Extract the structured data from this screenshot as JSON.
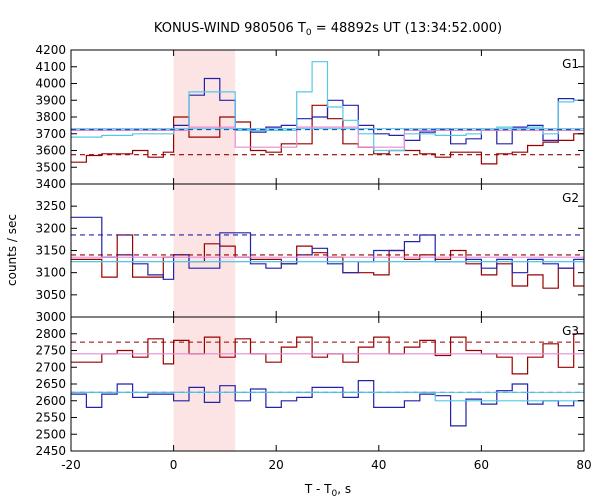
{
  "chart_data": {
    "type": "line",
    "title": "KONUS-WIND 980506 T",
    "title_sub": "0",
    "title_suffix": " = 48892s UT (13:34:52.000)",
    "xlabel_main": "T - T",
    "xlabel_sub": "0",
    "xlabel_suffix": ", s",
    "ylabel": "counts / sec",
    "xlim": [
      -20,
      80
    ],
    "xticks": [
      -20,
      0,
      20,
      40,
      60,
      80
    ],
    "highlight_interval": [
      0,
      12
    ],
    "colors": {
      "dark_red": "#990000",
      "blue": "#2222aa",
      "light_blue": "#55c8e6",
      "pink": "#e68ad0",
      "highlight": "#fde4e4"
    },
    "panels": [
      {
        "label": "G1",
        "ylim": [
          3400,
          4200
        ],
        "yticks": [
          3400,
          3500,
          3600,
          3700,
          3800,
          3900,
          4000,
          4100,
          4200
        ],
        "bins": [
          -20,
          -17,
          -14,
          -11,
          -8,
          -5,
          -2,
          0,
          3,
          6,
          9,
          12,
          15,
          18,
          21,
          24,
          27,
          30,
          33,
          36,
          39,
          42,
          45,
          48,
          51,
          54,
          57,
          60,
          63,
          66,
          69,
          72,
          75,
          78,
          80
        ],
        "series": [
          {
            "color": "dark_red",
            "style": "step",
            "values": [
              3530,
              3570,
              3580,
              3580,
              3600,
              3560,
              3590,
              3800,
              3680,
              3680,
              3800,
              3770,
              3600,
              3590,
              3640,
              3640,
              3870,
              3790,
              3640,
              3620,
              3580,
              3600,
              3600,
              3580,
              3560,
              3590,
              3590,
              3520,
              3580,
              3590,
              3630,
              3650,
              3660,
              3700
            ]
          },
          {
            "color": "blue",
            "style": "step",
            "values": [
              3720,
              3720,
              3720,
              3720,
              3720,
              3720,
              3720,
              3750,
              3930,
              4030,
              3900,
              3730,
              3710,
              3740,
              3750,
              3790,
              3800,
              3900,
              3870,
              3750,
              3700,
              3690,
              3660,
              3710,
              3730,
              3640,
              3670,
              3720,
              3640,
              3740,
              3750,
              3660,
              3910,
              3900
            ]
          },
          {
            "color": "light_blue",
            "style": "step",
            "values": [
              3680,
              3680,
              3690,
              3690,
              3700,
              3700,
              3700,
              3720,
              3950,
              3950,
              3950,
              3720,
              3720,
              3720,
              3720,
              3950,
              4130,
              3860,
              3780,
              3700,
              3600,
              3600,
              3700,
              3700,
              3690,
              3690,
              3700,
              3720,
              3740,
              3730,
              3740,
              3700,
              3890,
              3900
            ]
          },
          {
            "color": "pink",
            "style": "step",
            "values": [
              3720,
              3720,
              3720,
              3720,
              3720,
              3720,
              3720,
              3720,
              3740,
              3740,
              3740,
              3620,
              3620,
              3620,
              3620,
              3740,
              3740,
              3740,
              3740,
              3620,
              3620,
              3620,
              3720,
              3720,
              3720,
              3720,
              3720,
              3720,
              3720,
              3720,
              3720,
              3720,
              3720,
              3720
            ]
          },
          {
            "color": "dark_red",
            "style": "dashed",
            "y": 3575
          },
          {
            "color": "blue",
            "style": "dashed",
            "y": 3725
          },
          {
            "color": "light_blue",
            "style": "solid",
            "y": 3730
          }
        ]
      },
      {
        "label": "G2",
        "ylim": [
          3000,
          3300
        ],
        "yticks": [
          3000,
          3050,
          3100,
          3150,
          3200,
          3250
        ],
        "bins": [
          -20,
          -17,
          -14,
          -11,
          -8,
          -5,
          -2,
          0,
          3,
          6,
          9,
          12,
          15,
          18,
          21,
          24,
          27,
          30,
          33,
          36,
          39,
          42,
          45,
          48,
          51,
          54,
          57,
          60,
          63,
          66,
          69,
          72,
          75,
          78,
          80
        ],
        "series": [
          {
            "color": "dark_red",
            "style": "step",
            "values": [
              3130,
              3130,
              3090,
              3185,
              3090,
              3090,
              3135,
              3140,
              3125,
              3165,
              3160,
              3135,
              3130,
              3130,
              3120,
              3160,
              3145,
              3135,
              3100,
              3100,
              3095,
              3150,
              3130,
              3140,
              3130,
              3150,
              3120,
              3095,
              3120,
              3070,
              3095,
              3065,
              3110,
              3070
            ]
          },
          {
            "color": "blue",
            "style": "step",
            "values": [
              3225,
              3225,
              3135,
              3140,
              3120,
              3095,
              3085,
              3140,
              3110,
              3110,
              3190,
              3190,
              3120,
              3110,
              3120,
              3140,
              3155,
              3120,
              3100,
              3125,
              3150,
              3150,
              3170,
              3185,
              3125,
              3125,
              3130,
              3110,
              3130,
              3100,
              3130,
              3120,
              3110,
              3130
            ]
          },
          {
            "color": "light_blue",
            "style": "step",
            "values": [
              3125,
              3125,
              3125,
              3125,
              3125,
              3125,
              3125,
              3125,
              3125,
              3125,
              3125,
              3125,
              3125,
              3125,
              3125,
              3125,
              3125,
              3125,
              3125,
              3125,
              3125,
              3125,
              3125,
              3125,
              3125,
              3125,
              3125,
              3125,
              3125,
              3125,
              3125,
              3125,
              3125,
              3125
            ]
          },
          {
            "color": "blue",
            "style": "dashed",
            "y": 3185
          },
          {
            "color": "dark_red",
            "style": "dashed",
            "y": 3140
          },
          {
            "color": "light_blue",
            "style": "solid",
            "y": 3125
          },
          {
            "color": "pink",
            "style": "solid",
            "y": 3135
          }
        ]
      },
      {
        "label": "G3",
        "ylim": [
          2450,
          2850
        ],
        "yticks": [
          2450,
          2500,
          2550,
          2600,
          2650,
          2700,
          2750,
          2800
        ],
        "bins": [
          -20,
          -17,
          -14,
          -11,
          -8,
          -5,
          -2,
          0,
          3,
          6,
          9,
          12,
          15,
          18,
          21,
          24,
          27,
          30,
          33,
          36,
          39,
          42,
          45,
          48,
          51,
          54,
          57,
          60,
          63,
          66,
          69,
          72,
          75,
          78,
          80
        ],
        "series": [
          {
            "color": "dark_red",
            "style": "step",
            "values": [
              2715,
              2715,
              2740,
              2750,
              2730,
              2785,
              2710,
              2780,
              2740,
              2790,
              2730,
              2785,
              2740,
              2715,
              2760,
              2790,
              2730,
              2740,
              2715,
              2760,
              2790,
              2740,
              2760,
              2780,
              2735,
              2790,
              2750,
              2740,
              2730,
              2680,
              2730,
              2770,
              2700,
              2800
            ]
          },
          {
            "color": "blue",
            "style": "step",
            "values": [
              2620,
              2580,
              2620,
              2650,
              2610,
              2620,
              2620,
              2600,
              2640,
              2595,
              2645,
              2600,
              2635,
              2580,
              2600,
              2610,
              2640,
              2640,
              2610,
              2660,
              2580,
              2580,
              2600,
              2620,
              2615,
              2525,
              2605,
              2590,
              2630,
              2650,
              2590,
              2600,
              2585,
              2600
            ]
          },
          {
            "color": "light_blue",
            "style": "step",
            "values": [
              2625,
              2625,
              2625,
              2625,
              2625,
              2625,
              2625,
              2625,
              2625,
              2625,
              2625,
              2625,
              2625,
              2625,
              2625,
              2625,
              2625,
              2625,
              2625,
              2625,
              2625,
              2625,
              2625,
              2625,
              2600,
              2600,
              2600,
              2600,
              2600,
              2600,
              2600,
              2600,
              2600,
              2600
            ]
          },
          {
            "color": "pink",
            "style": "solid",
            "y": 2740
          },
          {
            "color": "dark_red",
            "style": "dashed",
            "y": 2775
          },
          {
            "color": "blue",
            "style": "dashed",
            "y": 2625
          },
          {
            "color": "light_blue",
            "style": "solid",
            "y": 2625
          }
        ]
      }
    ]
  }
}
